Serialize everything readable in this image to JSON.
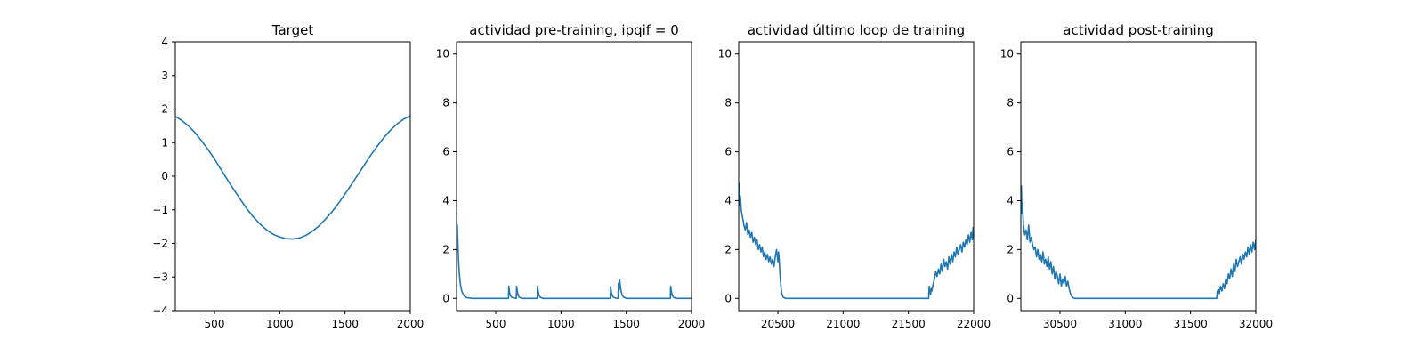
{
  "figure": {
    "background": "#ffffff",
    "line_color": "#1f77b4"
  },
  "chart_data": [
    {
      "type": "line",
      "title": "Target",
      "xlabel": "",
      "ylabel": "",
      "xlim": [
        200,
        2000
      ],
      "ylim": [
        -4,
        4
      ],
      "xticks": [
        500,
        1000,
        1500,
        2000
      ],
      "xtick_labels": [
        "500",
        "1000",
        "1500",
        "2000"
      ],
      "yticks": [
        -4,
        -3,
        -2,
        -1,
        0,
        1,
        2,
        3,
        4
      ],
      "ytick_labels": [
        "−4",
        "−3",
        "−2",
        "−1",
        "0",
        "1",
        "2",
        "3",
        "4"
      ],
      "grid": false,
      "series": [
        {
          "x": [
            200,
            250,
            300,
            350,
            400,
            450,
            500,
            550,
            600,
            650,
            700,
            750,
            800,
            850,
            900,
            950,
            1000,
            1050,
            1100,
            1150,
            1200,
            1250,
            1300,
            1350,
            1400,
            1450,
            1500,
            1550,
            1600,
            1650,
            1700,
            1750,
            1800,
            1850,
            1900,
            1950,
            2000
          ],
          "y": [
            1.78,
            1.66,
            1.5,
            1.3,
            1.06,
            0.8,
            0.51,
            0.2,
            -0.11,
            -0.41,
            -0.7,
            -0.98,
            -1.22,
            -1.43,
            -1.6,
            -1.73,
            -1.81,
            -1.86,
            -1.87,
            -1.84,
            -1.76,
            -1.64,
            -1.48,
            -1.28,
            -1.06,
            -0.81,
            -0.53,
            -0.24,
            0.05,
            0.35,
            0.64,
            0.91,
            1.16,
            1.38,
            1.56,
            1.7,
            1.8
          ]
        }
      ]
    },
    {
      "type": "line",
      "title": "actividad pre-training, ipqif = 0",
      "xlabel": "",
      "ylabel": "",
      "xlim": [
        200,
        2000
      ],
      "ylim": [
        -0.5,
        10.5
      ],
      "xticks": [
        500,
        1000,
        1500,
        2000
      ],
      "xtick_labels": [
        "500",
        "1000",
        "1500",
        "2000"
      ],
      "yticks": [
        0,
        2,
        4,
        6,
        8,
        10
      ],
      "ytick_labels": [
        "0",
        "2",
        "4",
        "6",
        "8",
        "10"
      ],
      "grid": false,
      "series": [
        {
          "x": [
            200,
            203,
            206,
            210,
            215,
            220,
            225,
            230,
            240,
            250,
            260,
            275,
            290,
            320,
            400,
            500,
            598,
            600,
            605,
            610,
            620,
            640,
            658,
            660,
            666,
            672,
            680,
            700,
            800,
            818,
            820,
            826,
            832,
            840,
            860,
            1000,
            1200,
            1370,
            1378,
            1380,
            1386,
            1392,
            1400,
            1420,
            1430,
            1438,
            1440,
            1445,
            1450,
            1456,
            1462,
            1470,
            1480,
            1500,
            1600,
            1700,
            1835,
            1838,
            1840,
            1846,
            1852,
            1860,
            1880,
            1950,
            2000
          ],
          "y": [
            3.5,
            2.6,
            3.0,
            2.3,
            1.6,
            1.1,
            0.8,
            0.55,
            0.3,
            0.17,
            0.09,
            0.04,
            0.02,
            0.0,
            0.0,
            0.0,
            0.0,
            0.5,
            0.28,
            0.14,
            0.05,
            0.01,
            0.0,
            0.5,
            0.27,
            0.13,
            0.05,
            0.0,
            0.0,
            0.0,
            0.5,
            0.27,
            0.13,
            0.05,
            0.0,
            0.0,
            0.0,
            0.0,
            0.0,
            0.48,
            0.26,
            0.12,
            0.05,
            0.01,
            0.0,
            0.0,
            0.62,
            0.35,
            0.75,
            0.45,
            0.25,
            0.12,
            0.05,
            0.0,
            0.0,
            0.0,
            0.0,
            0.0,
            0.5,
            0.27,
            0.13,
            0.05,
            0.0,
            0.0,
            0.0
          ]
        }
      ]
    },
    {
      "type": "line",
      "title": "actividad último loop de training",
      "xlabel": "",
      "ylabel": "",
      "xlim": [
        20200,
        22000
      ],
      "ylim": [
        -0.5,
        10.5
      ],
      "xticks": [
        20500,
        21000,
        21500,
        22000
      ],
      "xtick_labels": [
        "20500",
        "21000",
        "21500",
        "22000"
      ],
      "yticks": [
        0,
        2,
        4,
        6,
        8,
        10
      ],
      "ytick_labels": [
        "0",
        "2",
        "4",
        "6",
        "8",
        "10"
      ],
      "grid": false,
      "series": [
        {
          "x": [
            20200,
            20204,
            20208,
            20212,
            20220,
            20230,
            20240,
            20250,
            20260,
            20270,
            20280,
            20290,
            20300,
            20310,
            20320,
            20330,
            20340,
            20350,
            20360,
            20370,
            20380,
            20390,
            20400,
            20410,
            20420,
            20430,
            20440,
            20450,
            20460,
            20470,
            20480,
            20490,
            20500,
            20505,
            20510,
            20515,
            20520,
            20525,
            20530,
            20540,
            20560,
            20600,
            20800,
            21000,
            21300,
            21500,
            21655,
            21660,
            21665,
            21670,
            21675,
            21680,
            21690,
            21700,
            21710,
            21720,
            21730,
            21740,
            21750,
            21760,
            21770,
            21780,
            21790,
            21800,
            21810,
            21820,
            21830,
            21840,
            21850,
            21860,
            21870,
            21880,
            21890,
            21900,
            21910,
            21920,
            21930,
            21940,
            21950,
            21960,
            21970,
            21980,
            21990,
            21995,
            22000
          ],
          "y": [
            4.0,
            4.7,
            3.8,
            4.2,
            3.6,
            3.3,
            3.0,
            2.8,
            3.1,
            2.6,
            2.8,
            2.5,
            2.7,
            2.3,
            2.5,
            2.2,
            2.4,
            2.0,
            2.2,
            1.9,
            2.1,
            1.7,
            1.9,
            1.6,
            1.8,
            1.5,
            1.7,
            1.4,
            1.6,
            1.3,
            1.7,
            2.0,
            1.5,
            1.9,
            1.6,
            1.1,
            0.7,
            0.4,
            0.2,
            0.05,
            0.0,
            0.0,
            0.0,
            0.0,
            0.0,
            0.0,
            0.0,
            0.5,
            0.3,
            0.15,
            0.4,
            0.3,
            0.6,
            0.8,
            1.1,
            0.9,
            1.2,
            1.0,
            1.4,
            1.1,
            1.6,
            1.3,
            1.5,
            1.2,
            1.7,
            1.4,
            1.8,
            1.5,
            1.9,
            1.7,
            2.1,
            1.8,
            2.0,
            2.2,
            1.9,
            2.3,
            2.1,
            2.4,
            2.2,
            2.6,
            2.3,
            2.7,
            2.4,
            2.9,
            2.5
          ]
        }
      ]
    },
    {
      "type": "line",
      "title": "actividad post-training",
      "xlabel": "",
      "ylabel": "",
      "xlim": [
        30200,
        32000
      ],
      "ylim": [
        -0.5,
        10.5
      ],
      "xticks": [
        30500,
        31000,
        31500,
        32000
      ],
      "xtick_labels": [
        "30500",
        "31000",
        "31500",
        "32000"
      ],
      "yticks": [
        0,
        2,
        4,
        6,
        8,
        10
      ],
      "ytick_labels": [
        "0",
        "2",
        "4",
        "6",
        "8",
        "10"
      ],
      "grid": false,
      "series": [
        {
          "x": [
            30200,
            30204,
            30208,
            30212,
            30220,
            30230,
            30240,
            30250,
            30260,
            30270,
            30280,
            30290,
            30300,
            30310,
            30320,
            30330,
            30340,
            30350,
            30360,
            30370,
            30380,
            30390,
            30400,
            30410,
            30420,
            30430,
            30440,
            30450,
            30460,
            30470,
            30480,
            30490,
            30500,
            30510,
            30520,
            30530,
            30540,
            30550,
            30560,
            30570,
            30580,
            30590,
            30600,
            30610,
            30620,
            30640,
            30700,
            31000,
            31300,
            31550,
            31700,
            31705,
            31710,
            31715,
            31720,
            31730,
            31740,
            31750,
            31760,
            31770,
            31780,
            31790,
            31800,
            31810,
            31820,
            31830,
            31840,
            31850,
            31860,
            31870,
            31880,
            31890,
            31900,
            31910,
            31920,
            31930,
            31940,
            31950,
            31960,
            31970,
            31980,
            31990,
            32000
          ],
          "y": [
            3.7,
            4.6,
            3.5,
            3.9,
            3.0,
            2.6,
            2.8,
            2.4,
            3.0,
            2.3,
            2.5,
            2.2,
            2.0,
            2.1,
            1.7,
            2.0,
            1.6,
            1.8,
            1.5,
            1.9,
            1.4,
            1.6,
            1.3,
            1.7,
            1.2,
            1.5,
            1.0,
            1.3,
            0.8,
            1.1,
            0.9,
            0.6,
            1.0,
            0.5,
            0.8,
            0.6,
            0.9,
            0.5,
            0.7,
            0.4,
            0.2,
            0.08,
            0.03,
            0.0,
            0.0,
            0.0,
            0.0,
            0.0,
            0.0,
            0.0,
            0.0,
            0.3,
            0.15,
            0.35,
            0.2,
            0.5,
            0.3,
            0.6,
            0.4,
            0.8,
            0.6,
            1.0,
            0.8,
            1.2,
            0.9,
            1.4,
            1.1,
            1.6,
            1.3,
            1.5,
            1.7,
            1.4,
            1.8,
            1.6,
            1.9,
            1.7,
            2.1,
            1.8,
            2.2,
            1.9,
            2.3,
            2.0,
            2.4
          ]
        }
      ]
    }
  ]
}
